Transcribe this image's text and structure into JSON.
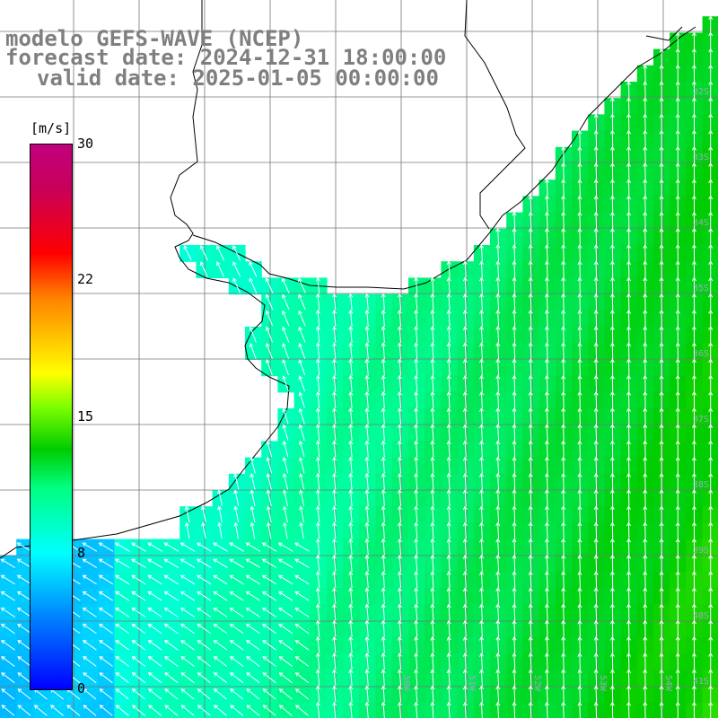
{
  "title": {
    "line1": "modelo GEFS-WAVE (NCEP)",
    "line2": "forecast date: 2024-12-31 18:00:00",
    "line3": "valid date: 2025-01-05 00:00:00"
  },
  "colorbar": {
    "units": "[m/s]",
    "ticks": [
      {
        "value": 30,
        "label": "30"
      },
      {
        "value": 22,
        "label": "22"
      },
      {
        "value": 15,
        "label": "15"
      },
      {
        "value": 8,
        "label": "8"
      },
      {
        "value": 0,
        "label": "0"
      }
    ],
    "colors": [
      "#0000ff",
      "#0080ff",
      "#00ffff",
      "#00ff80",
      "#00cc00",
      "#80ff00",
      "#ffff00",
      "#ff8000",
      "#ff0000",
      "#c0007e"
    ]
  },
  "lat_labels": [
    "32S",
    "33S",
    "34S",
    "35S",
    "36S",
    "37S",
    "38S",
    "39S",
    "40S",
    "41S"
  ],
  "lon_labels": [
    "50W",
    "51W",
    "52W",
    "53W",
    "54W"
  ],
  "field": {
    "variable": "wind speed",
    "unit": "m/s",
    "direction": "from south / southeast (arrows pointing north and northwest)",
    "range": [
      6,
      13
    ]
  }
}
